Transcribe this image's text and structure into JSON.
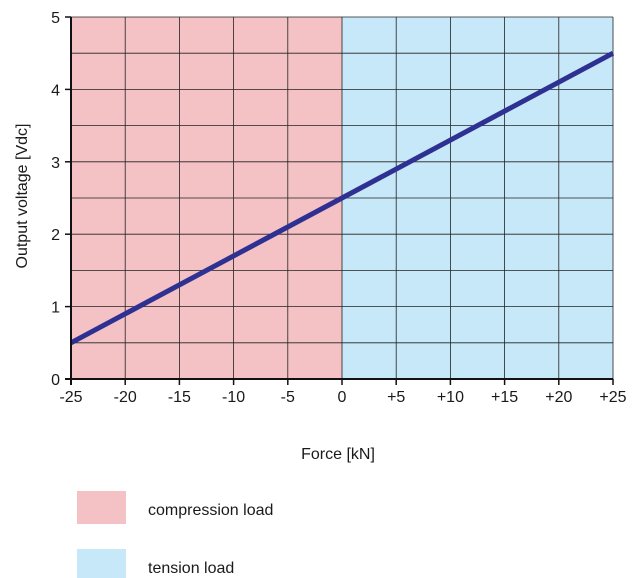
{
  "chart_data": {
    "type": "line",
    "title": "",
    "xlabel": "Force [kN]",
    "ylabel": "Output voltage [Vdc]",
    "xlim": [
      -25,
      25
    ],
    "ylim": [
      0,
      5
    ],
    "x_ticks": [
      -25,
      -20,
      -15,
      -10,
      -5,
      0,
      5,
      10,
      15,
      20,
      25
    ],
    "x_tick_labels": [
      "-25",
      "-20",
      "-15",
      "-10",
      "-5",
      "0",
      "+5",
      "+10",
      "+15",
      "+20",
      "+25"
    ],
    "y_ticks": [
      0,
      1,
      2,
      3,
      4,
      5
    ],
    "y_tick_labels": [
      "0",
      "1",
      "2",
      "3",
      "4",
      "5"
    ],
    "grid": true,
    "series": [
      {
        "x": [
          -25,
          0,
          25
        ],
        "y": [
          0.5,
          2.5,
          4.5
        ],
        "color": "#2e3192"
      }
    ],
    "regions": [
      {
        "label": "compression load",
        "x_range": [
          -25,
          0
        ],
        "color": "#f4c2c5"
      },
      {
        "label": "tension load",
        "x_range": [
          0,
          25
        ],
        "color": "#c6e8f8"
      }
    ],
    "legend": {
      "position": "bottom-left",
      "entries": [
        {
          "label": "compression load",
          "color": "#f4c2c5"
        },
        {
          "label": "tension load",
          "color": "#c6e8f8"
        }
      ]
    }
  }
}
